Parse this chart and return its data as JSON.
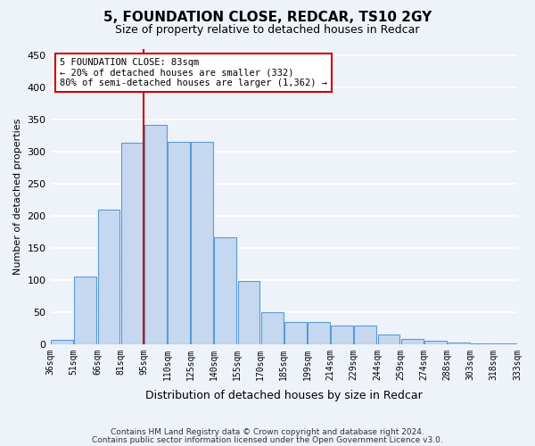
{
  "title": "5, FOUNDATION CLOSE, REDCAR, TS10 2GY",
  "subtitle": "Size of property relative to detached houses in Redcar",
  "xlabel": "Distribution of detached houses by size in Redcar",
  "ylabel": "Number of detached properties",
  "bin_labels": [
    "36sqm",
    "51sqm",
    "66sqm",
    "81sqm",
    "95sqm",
    "110sqm",
    "125sqm",
    "140sqm",
    "155sqm",
    "170sqm",
    "185sqm",
    "199sqm",
    "214sqm",
    "229sqm",
    "244sqm",
    "259sqm",
    "274sqm",
    "288sqm",
    "303sqm",
    "318sqm",
    "333sqm"
  ],
  "bar_values": [
    6,
    106,
    210,
    314,
    342,
    315,
    315,
    167,
    98,
    50,
    35,
    35,
    29,
    29,
    15,
    8,
    5,
    2,
    1,
    1
  ],
  "bar_color": "#c5d8f0",
  "bar_edge_color": "#5b9bd5",
  "vline_color": "#cc0000",
  "annotation_line1": "5 FOUNDATION CLOSE: 83sqm",
  "annotation_line2": "← 20% of detached houses are smaller (332)",
  "annotation_line3": "80% of semi-detached houses are larger (1,362) →",
  "annotation_box_color": "#ffffff",
  "annotation_box_edge_color": "#cc0000",
  "ylim": [
    0,
    460
  ],
  "yticks": [
    0,
    50,
    100,
    150,
    200,
    250,
    300,
    350,
    400,
    450
  ],
  "footer_line1": "Contains HM Land Registry data © Crown copyright and database right 2024.",
  "footer_line2": "Contains public sector information licensed under the Open Government Licence v3.0.",
  "background_color": "#eef2f9",
  "grid_color": "#ffffff",
  "vline_bar_index": 3.475
}
